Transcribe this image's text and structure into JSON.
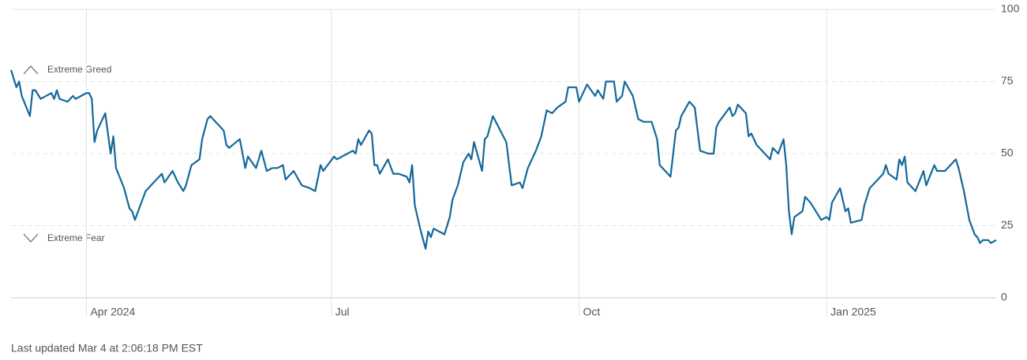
{
  "chart_data": {
    "type": "line",
    "series": [
      {
        "color": "#14689a",
        "x": [
          0,
          2,
          3,
          4,
          7,
          8,
          9,
          11,
          13,
          15,
          16,
          17,
          18,
          21,
          23,
          24,
          28,
          29,
          30,
          31,
          32,
          34,
          35,
          37,
          38,
          39,
          42,
          44,
          45,
          46,
          50,
          53,
          56,
          57,
          60,
          62,
          64,
          65,
          67,
          70,
          71,
          73,
          74,
          79,
          80,
          81,
          85,
          87,
          88,
          91,
          93,
          95,
          97,
          99,
          101,
          102,
          105,
          108,
          111,
          113,
          115,
          116,
          120,
          121,
          125,
          127,
          128,
          129,
          130,
          133,
          134,
          135,
          136,
          137,
          140,
          142,
          144,
          147,
          148,
          149,
          150,
          152,
          154,
          155,
          156,
          157,
          161,
          163,
          164,
          166,
          168,
          170,
          171,
          172,
          175,
          176,
          177,
          179,
          184,
          186,
          189,
          190,
          192,
          195,
          197,
          199,
          201,
          203,
          206,
          207,
          210,
          211,
          214,
          217,
          218,
          220,
          221,
          224,
          225,
          227,
          228,
          231,
          233,
          235,
          238,
          240,
          241,
          242,
          245,
          247,
          248,
          249,
          252,
          254,
          256,
          259,
          261,
          262,
          263,
          267,
          268,
          269,
          270,
          273,
          274,
          275,
          277,
          280,
          282,
          283,
          285,
          287,
          288,
          289,
          290,
          291,
          294,
          295,
          297,
          299,
          301,
          303,
          304,
          305,
          308,
          310,
          311,
          312,
          316,
          317,
          319,
          321,
          324,
          325,
          326,
          329,
          330,
          331,
          332,
          333,
          336,
          339,
          340,
          343,
          344,
          347,
          350,
          351,
          352,
          354,
          356,
          358,
          359,
          360,
          361,
          363,
          364,
          366
        ],
        "values": [
          79,
          73,
          75,
          70,
          63,
          72,
          72,
          69,
          70,
          71,
          69,
          72,
          69,
          68,
          70,
          69,
          71,
          71,
          69,
          54,
          58,
          62,
          64,
          50,
          56,
          45,
          38,
          31,
          30,
          27,
          37,
          40,
          43,
          40,
          44,
          40,
          37,
          39,
          46,
          48,
          55,
          62,
          63,
          58,
          53,
          52,
          55,
          45,
          49,
          45,
          51,
          44,
          45,
          45,
          46,
          41,
          44,
          39,
          38,
          37,
          46,
          44,
          49,
          48,
          50,
          51,
          50,
          55,
          53,
          58,
          57,
          46,
          46,
          43,
          48,
          43,
          43,
          42,
          40,
          46,
          32,
          24,
          17,
          23,
          21,
          24,
          22,
          28,
          34,
          39,
          47,
          50,
          48,
          54,
          44,
          55,
          56,
          63,
          54,
          39,
          40,
          38,
          45,
          51,
          56,
          65,
          64,
          66,
          68,
          73,
          73,
          68,
          74,
          70,
          72,
          69,
          75,
          75,
          68,
          70,
          75,
          70,
          62,
          61,
          61,
          55,
          46,
          45,
          42,
          58,
          59,
          63,
          68,
          66,
          51,
          50,
          50,
          59,
          61,
          66,
          63,
          64,
          67,
          64,
          56,
          57,
          53,
          50,
          48,
          52,
          50,
          55,
          46,
          30,
          22,
          28,
          30,
          35,
          33,
          30,
          27,
          28,
          27,
          33,
          38,
          30,
          31,
          26,
          27,
          32,
          38,
          40,
          43,
          46,
          43,
          41,
          48,
          46,
          49,
          40,
          37,
          44,
          39,
          46,
          44,
          44,
          47,
          48,
          45,
          37,
          27,
          22,
          21,
          19,
          20,
          20,
          19,
          20
        ]
      }
    ],
    "xlim": [
      0,
      366
    ],
    "xticks": [
      {
        "value": 28,
        "label": "Apr 2024"
      },
      {
        "value": 119,
        "label": "Jul"
      },
      {
        "value": 211,
        "label": "Oct"
      },
      {
        "value": 303,
        "label": "Jan 2025"
      }
    ],
    "ylim": [
      0,
      100
    ],
    "yticks": [
      0,
      25,
      50,
      75,
      100
    ],
    "annotations": [
      "Extreme Greed",
      "Extreme Fear"
    ],
    "footer": "Last updated Mar 4 at 2:06:18 PM EST"
  }
}
